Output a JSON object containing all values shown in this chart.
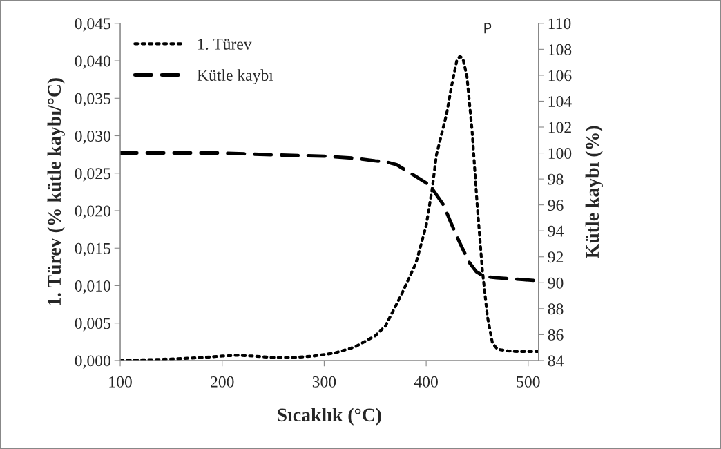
{
  "chart_data": {
    "type": "line",
    "xlabel": "Sıcaklık (°C)",
    "ylabel": "1. Türev (% kütle kaybı/°C)",
    "y2label": "Kütle kaybı (%)",
    "xlim": [
      100,
      510
    ],
    "xticks": [
      100,
      200,
      300,
      400,
      500
    ],
    "ylim": [
      0,
      0.045
    ],
    "yticks": [
      {
        "value": 0,
        "label": "0,000"
      },
      {
        "value": 0.005,
        "label": "0,005"
      },
      {
        "value": 0.01,
        "label": "0,010"
      },
      {
        "value": 0.015,
        "label": "0,015"
      },
      {
        "value": 0.02,
        "label": "0,020"
      },
      {
        "value": 0.025,
        "label": "0,025"
      },
      {
        "value": 0.03,
        "label": "0,030"
      },
      {
        "value": 0.035,
        "label": "0,035"
      },
      {
        "value": 0.04,
        "label": "0,040"
      },
      {
        "value": 0.045,
        "label": "0,045"
      }
    ],
    "y2lim": [
      84,
      110
    ],
    "y2ticks": [
      84,
      86,
      88,
      90,
      92,
      94,
      96,
      98,
      100,
      102,
      104,
      106,
      108,
      110
    ],
    "grid": false,
    "legend": "top left",
    "series": [
      {
        "name": "1. Türev",
        "color": "#000000",
        "line_style": "dotted",
        "x": [
          100,
          120,
          150,
          180,
          200,
          215,
          230,
          250,
          270,
          290,
          300,
          310,
          330,
          350,
          360,
          375,
          390,
          400,
          406,
          410,
          420,
          425,
          430,
          433,
          436,
          440,
          445,
          450,
          455,
          460,
          465,
          470,
          480,
          490,
          500,
          510
        ],
        "values": [
          0.0,
          0.0001,
          0.0002,
          0.0004,
          0.0006,
          0.0007,
          0.0006,
          0.0004,
          0.0004,
          0.0006,
          0.0008,
          0.001,
          0.0018,
          0.0033,
          0.0046,
          0.0086,
          0.013,
          0.018,
          0.023,
          0.0274,
          0.0329,
          0.0367,
          0.04,
          0.0406,
          0.0403,
          0.0379,
          0.0307,
          0.0208,
          0.0122,
          0.0059,
          0.0023,
          0.0015,
          0.0013,
          0.0012,
          0.0012,
          0.0012
        ]
      },
      {
        "name": "Kütle kaybı",
        "color": "#000000",
        "line_style": "dashed",
        "axis": "y2",
        "x": [
          100,
          150,
          200,
          250,
          300,
          330,
          350,
          360,
          371,
          386,
          400,
          406,
          417,
          423,
          432,
          442,
          449,
          457,
          469,
          494,
          510
        ],
        "values": [
          100.0,
          100.0,
          100.0,
          99.86,
          99.76,
          99.6,
          99.4,
          99.33,
          99.1,
          98.38,
          97.7,
          97.24,
          96.0,
          94.86,
          93.24,
          91.6,
          90.86,
          90.48,
          90.38,
          90.25,
          90.15
        ]
      }
    ],
    "annotations": [
      "P"
    ]
  }
}
